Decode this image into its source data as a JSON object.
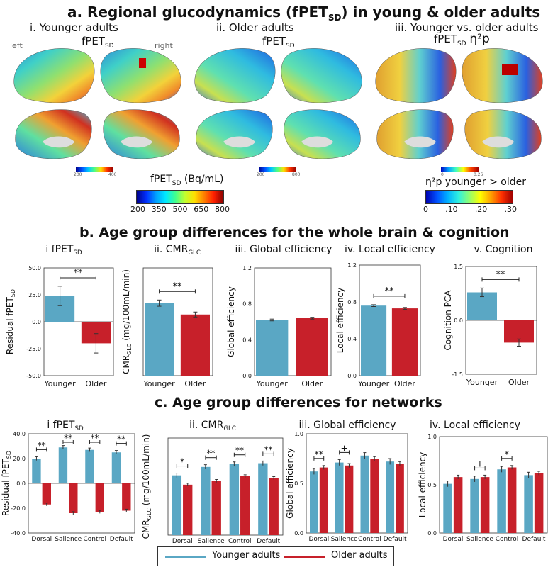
{
  "section_a": {
    "title": "a. Regional glucodynamics (fPET",
    "title_sub": "SD",
    "title_tail": ") in young & older adults",
    "panel_i_title": "i. Younger adults",
    "panel_ii_title": "ii. Older adults",
    "panel_iii_title": "iii. Younger vs. older adults",
    "metric_label": "fPET",
    "metric_sub": "SD",
    "eta_label": "η²p",
    "left_label": "left",
    "right_label": "right",
    "mini_scale_left": [
      "200",
      "400"
    ],
    "mini_scale_mid": [
      "200",
      "800"
    ],
    "mini_scale_right": [
      "0",
      "0.26"
    ],
    "colorbar1_label": "fPET",
    "colorbar1_sub": "SD",
    "colorbar1_unit": " (Bq/mL)",
    "colorbar1_ticks": [
      "200",
      "350",
      "500",
      "650",
      "800"
    ],
    "colorbar2_label": "η²p younger > older",
    "colorbar2_ticks": [
      "0",
      ".10",
      ".20",
      ".30"
    ]
  },
  "section_b": {
    "title": "b. Age group differences for the whole brain & cognition"
  },
  "section_c": {
    "title": "c. Age group differences for networks"
  },
  "legend": {
    "younger": "Younger adults",
    "older": "Older adults",
    "younger_color": "#5aa7c4",
    "older_color": "#c7202a"
  },
  "chart_data": [
    {
      "type": "bar",
      "title": "i fPET_SD",
      "ylabel": "Residual fPET_SD",
      "categories": [
        "Younger",
        "Older"
      ],
      "values": [
        24,
        -20
      ],
      "errors": [
        9,
        9
      ],
      "ylim": [
        -50,
        50
      ],
      "yticks": [
        "50.0",
        "25.0",
        "0.0",
        "-25.0",
        "-50.0"
      ],
      "yticks_num": [
        50,
        25,
        0,
        -25,
        -50
      ],
      "sig": [
        "**"
      ]
    },
    {
      "type": "bar",
      "title": "ii. CMR_GLC",
      "ylabel": "CMR_GLC (mg/100mL/min)",
      "categories": [
        "Younger",
        "Older"
      ],
      "values": [
        3.5,
        2.95
      ],
      "errors": [
        0.15,
        0.12
      ],
      "ylim": [
        0,
        5.2
      ],
      "yticks": [],
      "yticks_num": [],
      "sig": [
        "**"
      ]
    },
    {
      "type": "bar",
      "title": "iii. Global efficiency",
      "ylabel": "Global efficiency",
      "categories": [
        "Younger",
        "Older"
      ],
      "values": [
        0.62,
        0.64
      ],
      "errors": [
        0.01,
        0.01
      ],
      "ylim": [
        0,
        1.2
      ],
      "yticks": [
        "1.2",
        "0.8",
        "0.4",
        "0.0"
      ],
      "yticks_num": [
        1.2,
        0.8,
        0.4,
        0
      ],
      "sig": []
    },
    {
      "type": "bar",
      "title": "iv. Local efficiency",
      "ylabel": "Local efficiency",
      "categories": [
        "Younger",
        "Older"
      ],
      "values": [
        0.76,
        0.73
      ],
      "errors": [
        0.01,
        0.01
      ],
      "ylim": [
        0,
        1.2
      ],
      "yticks": [
        "1.2",
        "0.8",
        "0.4",
        "0.0"
      ],
      "yticks_num": [
        1.2,
        0.8,
        0.4,
        0
      ],
      "sig": [
        "**"
      ]
    },
    {
      "type": "bar",
      "title": "v. Cognition",
      "ylabel": "Cognition PCA",
      "categories": [
        "Younger",
        "Older"
      ],
      "values": [
        0.78,
        -0.62
      ],
      "errors": [
        0.12,
        0.1
      ],
      "ylim": [
        -1.5,
        1.5
      ],
      "yticks": [
        "1.5",
        "0.0",
        "-1.5"
      ],
      "yticks_num": [
        1.5,
        0,
        -1.5
      ],
      "sig": [
        "**"
      ]
    },
    {
      "type": "bar",
      "title": "i fPET_SD",
      "ylabel": "Residual fPET_SD",
      "categories": [
        "Dorsal",
        "Salience",
        "Control",
        "Default"
      ],
      "series": [
        {
          "name": "Younger adults",
          "values": [
            20,
            29,
            27,
            25
          ],
          "errors": [
            1.5,
            1.5,
            1.5,
            1.5
          ]
        },
        {
          "name": "Older adults",
          "values": [
            -17,
            -24,
            -23,
            -22
          ],
          "errors": [
            1.2,
            1.2,
            1.2,
            1.2
          ]
        }
      ],
      "ylim": [
        -40,
        40
      ],
      "yticks": [
        "40.0",
        "20.0",
        "0.0",
        "-20.0",
        "-40.0"
      ],
      "yticks_num": [
        40,
        20,
        0,
        -20,
        -40
      ],
      "sig": [
        "**",
        "**",
        "**",
        "**"
      ]
    },
    {
      "type": "bar",
      "title": "ii. CMR_GLC",
      "ylabel": "CMR_GLC (mg/100mL/min)",
      "categories": [
        "Dorsal",
        "Salience",
        "Control",
        "Default"
      ],
      "series": [
        {
          "name": "Younger adults",
          "values": [
            3.2,
            3.65,
            3.8,
            3.85
          ],
          "errors": [
            0.12,
            0.12,
            0.12,
            0.12
          ]
        },
        {
          "name": "Older adults",
          "values": [
            2.7,
            2.9,
            3.15,
            3.05
          ],
          "errors": [
            0.08,
            0.08,
            0.08,
            0.08
          ]
        }
      ],
      "ylim": [
        0,
        5.2
      ],
      "yticks": [],
      "yticks_num": [],
      "sig": [
        "*",
        "**",
        "**",
        "**"
      ]
    },
    {
      "type": "bar",
      "title": "iii. Global efficiency",
      "ylabel": "Global efficiency",
      "categories": [
        "Dorsal",
        "Salience",
        "Control",
        "Default"
      ],
      "series": [
        {
          "name": "Younger adults",
          "values": [
            0.62,
            0.71,
            0.78,
            0.72
          ],
          "errors": [
            0.03,
            0.03,
            0.03,
            0.03
          ]
        },
        {
          "name": "Older adults",
          "values": [
            0.66,
            0.68,
            0.75,
            0.7
          ],
          "errors": [
            0.02,
            0.02,
            0.02,
            0.02
          ]
        }
      ],
      "ylim": [
        0,
        1.0
      ],
      "yticks": [
        "1.0",
        "0.5",
        "0.0"
      ],
      "yticks_num": [
        1.0,
        0.5,
        0
      ],
      "sig": [
        "**",
        "+",
        "",
        ""
      ]
    },
    {
      "type": "bar",
      "title": "iv. Local efficiency",
      "ylabel": "Local efficiency",
      "categories": [
        "Dorsal",
        "Salience",
        "Control",
        "Default"
      ],
      "series": [
        {
          "name": "Younger adults",
          "values": [
            0.51,
            0.56,
            0.66,
            0.6
          ],
          "errors": [
            0.03,
            0.03,
            0.03,
            0.03
          ]
        },
        {
          "name": "Older adults",
          "values": [
            0.58,
            0.58,
            0.68,
            0.62
          ],
          "errors": [
            0.02,
            0.02,
            0.02,
            0.02
          ]
        }
      ],
      "ylim": [
        0,
        1.0
      ],
      "yticks": [
        "1.0",
        "0.5",
        "0.0"
      ],
      "yticks_num": [
        1.0,
        0.5,
        0
      ],
      "sig": [
        "",
        "+",
        "*",
        ""
      ]
    }
  ]
}
